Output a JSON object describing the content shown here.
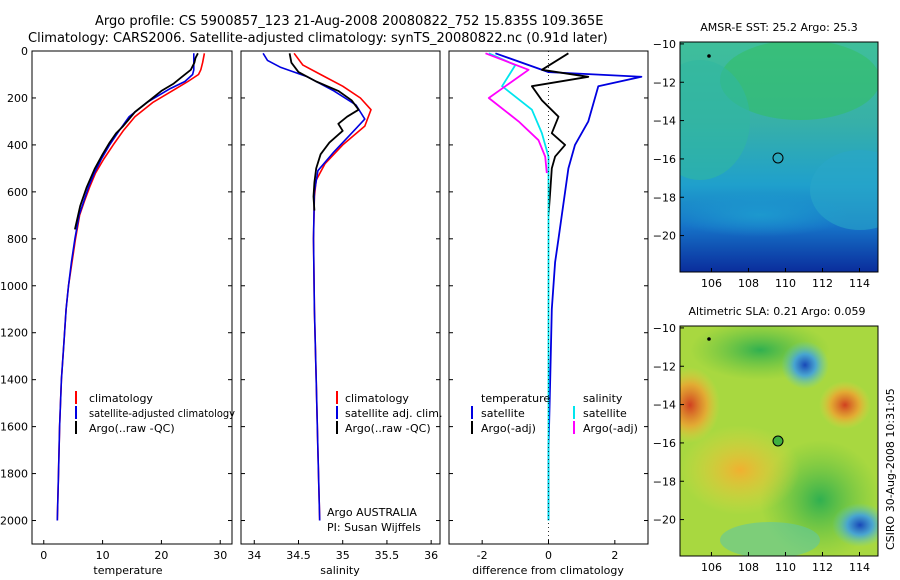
{
  "header": {
    "title_line1": "Argo profile: CS 5900857_123 21-Aug-2008 20080822_752 15.835S 109.365E",
    "title_line2": "Climatology: CARS2006. Satellite-adjusted climatology: synTS_20080822.nc (0.91d later)"
  },
  "colors": {
    "climatology": "#ff0000",
    "satellite": "#0000e0",
    "argo": "#000000",
    "salinity_satellite": "#00e5ee",
    "argo_adj": "#ff00ff"
  },
  "footer": {
    "stamp": "CSIRO 30-Aug-2008 10:31:05"
  },
  "chart_data": [
    {
      "id": "temperature",
      "type": "line",
      "xlabel": "temperature",
      "ylabel": "",
      "xlim": [
        -2,
        32
      ],
      "ylim": [
        2100,
        0
      ],
      "xticks": [
        0,
        10,
        20,
        30
      ],
      "yticks": [
        0,
        200,
        400,
        600,
        800,
        1000,
        1200,
        1400,
        1600,
        1800,
        2000
      ],
      "legend": [
        "climatology",
        "satellite-adjusted climatology",
        "Argo(..raw -QC)"
      ],
      "series": [
        {
          "name": "climatology",
          "color": "#ff0000",
          "width": 1.6,
          "x": [
            27.3,
            27.0,
            26.7,
            26.3,
            24.5,
            22.5,
            18.5,
            15.5,
            13.5,
            11.8,
            10.2,
            8.8,
            7.8,
            6.9,
            6.1,
            5.4,
            4.8,
            4.2,
            3.8,
            3.4,
            3.0,
            2.7,
            2.5,
            2.3
          ],
          "y": [
            10,
            50,
            80,
            100,
            130,
            160,
            220,
            280,
            340,
            400,
            460,
            520,
            580,
            640,
            700,
            800,
            900,
            1000,
            1100,
            1250,
            1400,
            1600,
            1800,
            2000
          ]
        },
        {
          "name": "satellite-adjusted climatology",
          "color": "#0000e0",
          "width": 1.6,
          "x": [
            25.5,
            25.5,
            25.5,
            25.3,
            24.0,
            21.5,
            17.5,
            14.5,
            12.8,
            11.2,
            9.8,
            8.6,
            7.6,
            6.8,
            6.0,
            5.3,
            4.7,
            4.2,
            3.8,
            3.4,
            3.0,
            2.7,
            2.5,
            2.3
          ],
          "y": [
            10,
            50,
            80,
            100,
            130,
            160,
            220,
            280,
            340,
            400,
            460,
            520,
            580,
            640,
            700,
            800,
            900,
            1000,
            1100,
            1250,
            1400,
            1600,
            1800,
            2000
          ]
        },
        {
          "name": "Argo(..raw -QC)",
          "color": "#000000",
          "width": 1.8,
          "x": [
            26.2,
            25.8,
            25.6,
            25.0,
            23.5,
            22.0,
            20.0,
            18.5,
            17.0,
            15.5,
            14.5,
            13.5,
            12.3,
            11.2,
            10.0,
            8.7,
            7.3,
            6.2,
            5.3
          ],
          "y": [
            10,
            30,
            50,
            80,
            110,
            140,
            170,
            200,
            230,
            260,
            290,
            320,
            350,
            390,
            440,
            500,
            580,
            660,
            760
          ]
        }
      ]
    },
    {
      "id": "salinity",
      "type": "line",
      "xlabel": "salinity",
      "xlim": [
        33.85,
        36.1
      ],
      "ylim": [
        2100,
        0
      ],
      "xticks": [
        34,
        34.5,
        35,
        35.5,
        36
      ],
      "legend": [
        "climatology",
        "satellite adj. clim.",
        "Argo(..raw -QC)"
      ],
      "annotation_line1": "Argo AUSTRALIA",
      "annotation_line2": "PI: Susan Wijffels",
      "series": [
        {
          "name": "climatology",
          "color": "#ff0000",
          "width": 1.6,
          "x": [
            34.45,
            34.55,
            34.75,
            35.0,
            35.2,
            35.32,
            35.25,
            35.0,
            34.8,
            34.7,
            34.68,
            34.67,
            34.68,
            34.7,
            34.72,
            34.74
          ],
          "y": [
            10,
            60,
            100,
            150,
            200,
            250,
            320,
            400,
            480,
            550,
            620,
            800,
            1100,
            1400,
            1700,
            2000
          ]
        },
        {
          "name": "satellite adj. clim.",
          "color": "#0000e0",
          "width": 1.6,
          "x": [
            34.1,
            34.15,
            34.3,
            34.6,
            34.9,
            35.15,
            35.25,
            35.1,
            34.9,
            34.72,
            34.68,
            34.67,
            34.68,
            34.7,
            34.72,
            34.74
          ],
          "y": [
            10,
            40,
            70,
            110,
            170,
            230,
            290,
            350,
            430,
            510,
            600,
            800,
            1100,
            1400,
            1700,
            2000
          ]
        },
        {
          "name": "Argo(..raw -QC)",
          "color": "#000000",
          "width": 1.8,
          "x": [
            34.4,
            34.42,
            34.5,
            34.7,
            34.95,
            35.1,
            35.18,
            35.05,
            34.95,
            35.0,
            34.85,
            34.75,
            34.7,
            34.68,
            34.67,
            34.68
          ],
          "y": [
            10,
            50,
            90,
            130,
            170,
            210,
            250,
            280,
            310,
            340,
            390,
            440,
            500,
            560,
            620,
            680
          ]
        }
      ]
    },
    {
      "id": "difference",
      "type": "line",
      "xlabel": "difference from climatology",
      "xlim": [
        -3.0,
        3.0
      ],
      "ylim": [
        2100,
        0
      ],
      "xticks": [
        -2,
        0,
        2
      ],
      "legend_temperature_title": "temperature",
      "legend_salinity_title": "salinity",
      "legend": [
        "satellite",
        "Argo(-adj)",
        "satellite",
        "Argo(-adj)"
      ],
      "series": [
        {
          "name": "temperature satellite",
          "color": "#0000e0",
          "width": 1.8,
          "x": [
            -1.6,
            0.0,
            2.8,
            1.5,
            1.2,
            0.8,
            0.6,
            0.5,
            0.4,
            0.3,
            0.2,
            0.1,
            0.05,
            0.0,
            0.0
          ],
          "y": [
            10,
            90,
            110,
            150,
            300,
            400,
            500,
            600,
            700,
            800,
            900,
            1100,
            1400,
            1700,
            2000
          ]
        },
        {
          "name": "temperature Argo(-adj)",
          "color": "#000000",
          "width": 1.8,
          "x": [
            0.6,
            -0.2,
            1.2,
            -0.5,
            -0.2,
            0.3,
            0.1,
            0.5,
            0.2,
            0.1,
            0.05,
            0.0
          ],
          "y": [
            10,
            80,
            110,
            150,
            210,
            280,
            350,
            400,
            450,
            500,
            600,
            700
          ]
        },
        {
          "name": "salinity satellite",
          "color": "#00e5ee",
          "width": 1.8,
          "x": [
            -1.8,
            -1.0,
            -1.4,
            -0.5,
            -0.2,
            0.0,
            0.0,
            0.0
          ],
          "y": [
            10,
            60,
            150,
            250,
            350,
            450,
            700,
            2000
          ]
        },
        {
          "name": "salinity Argo(-adj)",
          "color": "#ff00ff",
          "width": 1.8,
          "x": [
            -1.9,
            -0.6,
            -1.3,
            -1.8,
            -0.9,
            -0.3,
            -0.1,
            -0.05
          ],
          "y": [
            10,
            80,
            150,
            200,
            300,
            380,
            450,
            520
          ]
        }
      ]
    },
    {
      "id": "sst_map",
      "type": "heatmap",
      "title": "AMSR-E SST: 25.2 Argo: 25.3",
      "x_ticks": [
        "106",
        "108",
        "110",
        "112",
        "114"
      ],
      "y_ticks": [
        "−10",
        "−12",
        "−14",
        "−16",
        "−18",
        "−20"
      ],
      "xlim": [
        104.3,
        115.0
      ],
      "ylim": [
        -21.9,
        -9.9
      ],
      "argo_position": [
        109.365,
        -15.835
      ]
    },
    {
      "id": "sla_map",
      "type": "heatmap",
      "title": "Altimetric SLA: 0.21 Argo: 0.059",
      "x_ticks": [
        "106",
        "108",
        "110",
        "112",
        "114"
      ],
      "y_ticks": [
        "−10",
        "−12",
        "−14",
        "−16",
        "−18",
        "−20"
      ],
      "xlim": [
        104.3,
        115.0
      ],
      "ylim": [
        -21.9,
        -9.9
      ],
      "argo_position": [
        109.365,
        -15.835
      ]
    }
  ]
}
